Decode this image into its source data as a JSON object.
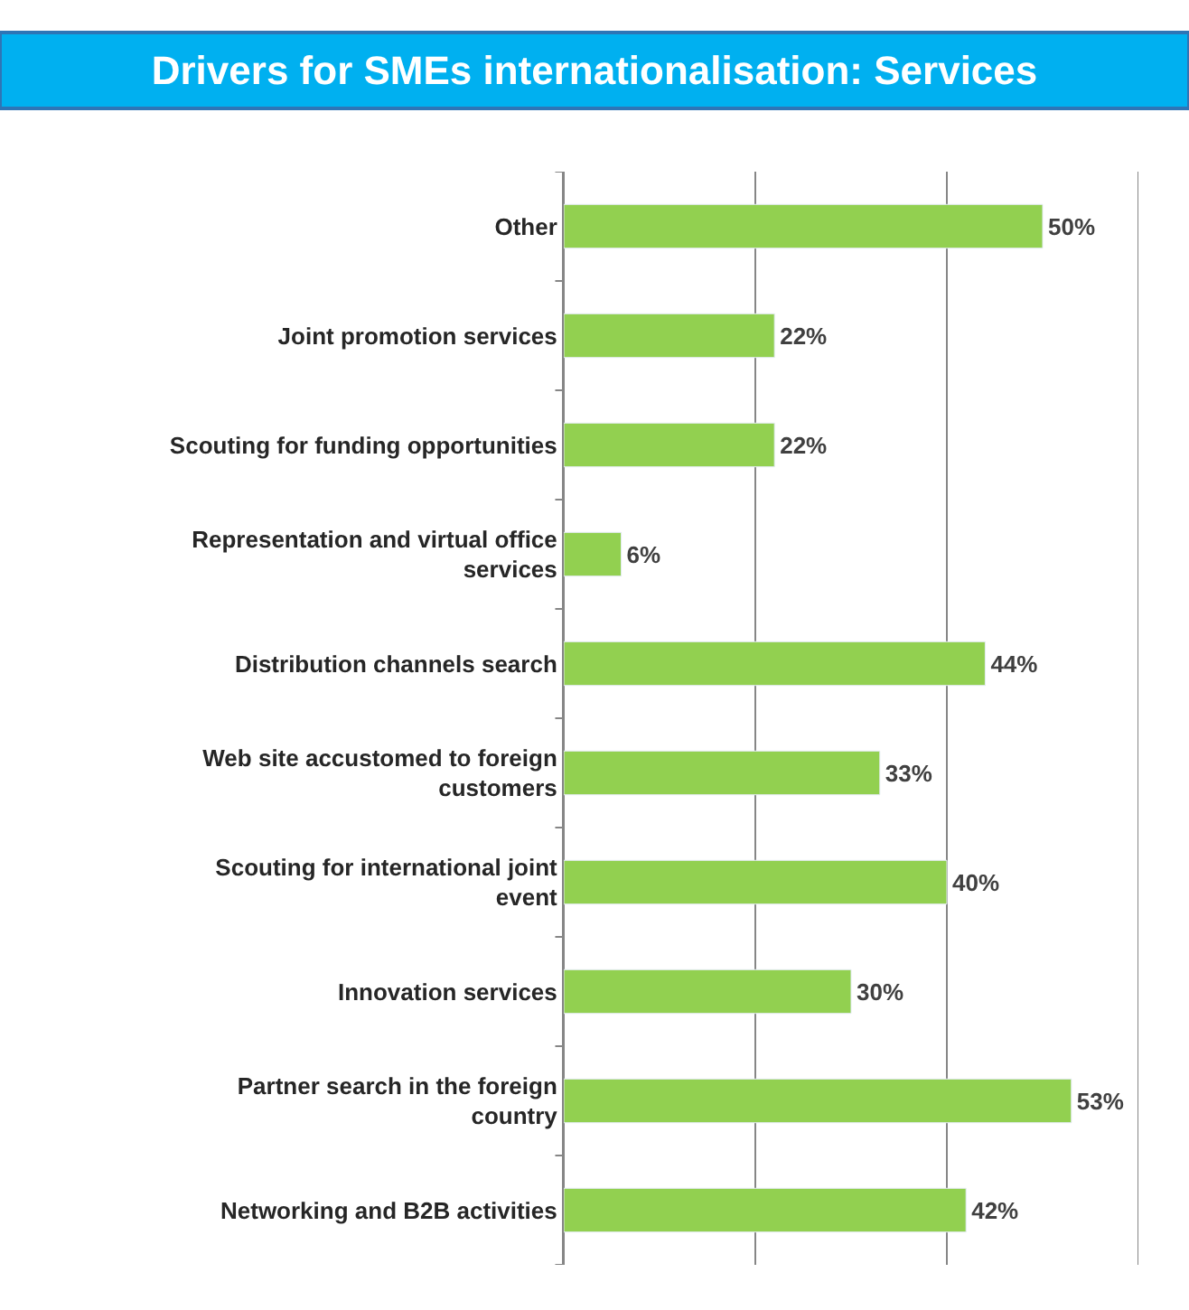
{
  "chart_data": {
    "type": "bar",
    "orientation": "horizontal",
    "title": "Drivers for SMEs internationalisation: Services",
    "categories": [
      "Other",
      "Joint promotion services",
      "Scouting for funding opportunities",
      "Representation and virtual office services",
      "Distribution channels search",
      "Web site accustomed to foreign customers",
      "Scouting for international joint event",
      "Innovation services",
      "Partner search in the foreign country",
      "Networking and B2B activities"
    ],
    "values": [
      50,
      22,
      22,
      6,
      44,
      33,
      40,
      30,
      53,
      42
    ],
    "value_labels": [
      "50%",
      "22%",
      "22%",
      "6%",
      "44%",
      "33%",
      "40%",
      "30%",
      "53%",
      "42%"
    ],
    "color": "#92d050",
    "xlim": [
      0,
      60
    ],
    "xticks": [
      {
        "value": 0,
        "label": null
      },
      {
        "value": 20,
        "label": null
      },
      {
        "value": 40,
        "label": null
      },
      {
        "value": 60,
        "label": null
      }
    ],
    "tick_labels": "y",
    "grid": "x",
    "legend": false
  }
}
